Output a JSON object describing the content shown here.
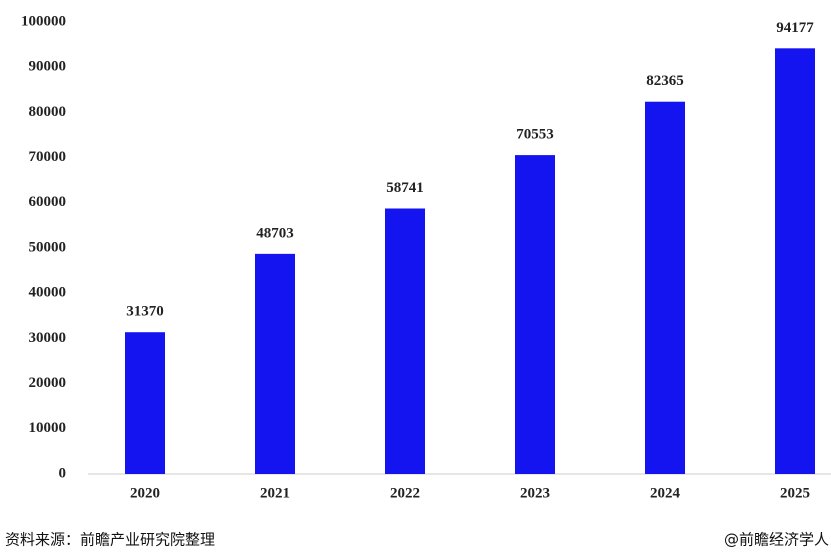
{
  "chart_data": {
    "type": "bar",
    "categories": [
      "2020",
      "2021",
      "2022",
      "2023",
      "2024",
      "2025"
    ],
    "values": [
      31370,
      48703,
      58741,
      70553,
      82365,
      94177
    ],
    "color": "#1414f0",
    "ylim": [
      0,
      100000
    ],
    "yticks": [
      0,
      10000,
      20000,
      30000,
      40000,
      50000,
      60000,
      70000,
      80000,
      90000,
      100000
    ],
    "grid": false,
    "source": "资料来源：前瞻产业研究院整理",
    "watermark": "@前瞻经济学人"
  }
}
